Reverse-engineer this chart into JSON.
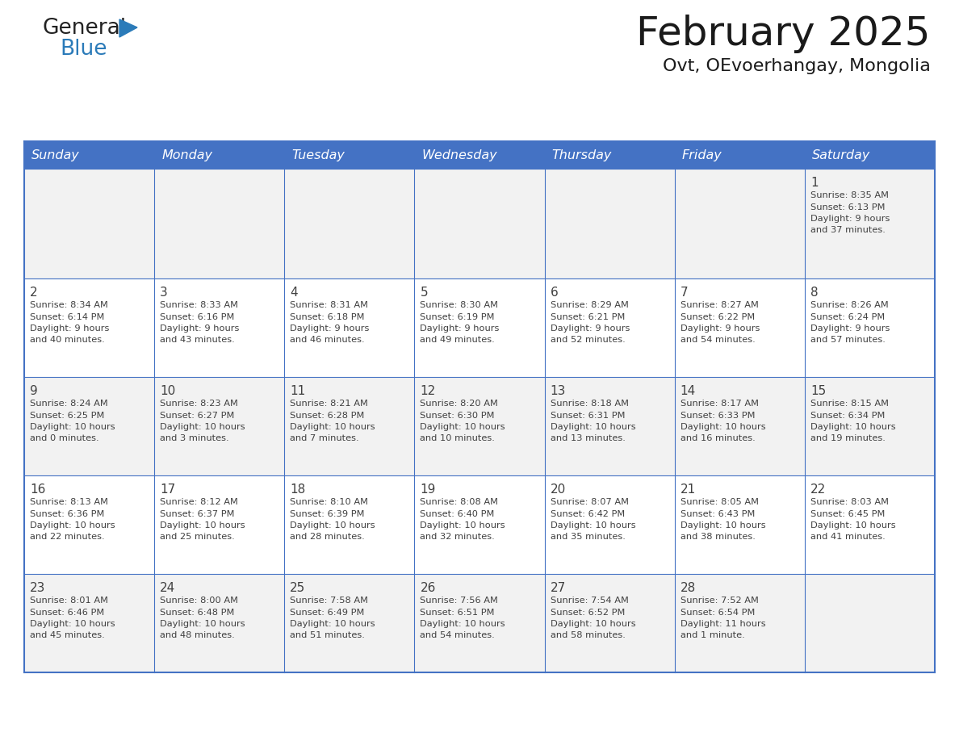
{
  "title": "February 2025",
  "subtitle": "Ovt, OEvoerhangay, Mongolia",
  "days_of_week": [
    "Sunday",
    "Monday",
    "Tuesday",
    "Wednesday",
    "Thursday",
    "Friday",
    "Saturday"
  ],
  "header_bg": "#4472C4",
  "header_text": "#FFFFFF",
  "cell_bg_odd": "#F2F2F2",
  "cell_bg_even": "#FFFFFF",
  "border_color": "#4472C4",
  "text_color": "#404040",
  "title_color": "#1a1a1a",
  "subtitle_color": "#1a1a1a",
  "calendar_data": [
    [
      null,
      null,
      null,
      null,
      null,
      null,
      {
        "day": "1",
        "sunrise": "8:35 AM",
        "sunset": "6:13 PM",
        "daylight_h": "9 hours",
        "daylight_m": "and 37 minutes."
      }
    ],
    [
      {
        "day": "2",
        "sunrise": "8:34 AM",
        "sunset": "6:14 PM",
        "daylight_h": "9 hours",
        "daylight_m": "and 40 minutes."
      },
      {
        "day": "3",
        "sunrise": "8:33 AM",
        "sunset": "6:16 PM",
        "daylight_h": "9 hours",
        "daylight_m": "and 43 minutes."
      },
      {
        "day": "4",
        "sunrise": "8:31 AM",
        "sunset": "6:18 PM",
        "daylight_h": "9 hours",
        "daylight_m": "and 46 minutes."
      },
      {
        "day": "5",
        "sunrise": "8:30 AM",
        "sunset": "6:19 PM",
        "daylight_h": "9 hours",
        "daylight_m": "and 49 minutes."
      },
      {
        "day": "6",
        "sunrise": "8:29 AM",
        "sunset": "6:21 PM",
        "daylight_h": "9 hours",
        "daylight_m": "and 52 minutes."
      },
      {
        "day": "7",
        "sunrise": "8:27 AM",
        "sunset": "6:22 PM",
        "daylight_h": "9 hours",
        "daylight_m": "and 54 minutes."
      },
      {
        "day": "8",
        "sunrise": "8:26 AM",
        "sunset": "6:24 PM",
        "daylight_h": "9 hours",
        "daylight_m": "and 57 minutes."
      }
    ],
    [
      {
        "day": "9",
        "sunrise": "8:24 AM",
        "sunset": "6:25 PM",
        "daylight_h": "10 hours",
        "daylight_m": "and 0 minutes."
      },
      {
        "day": "10",
        "sunrise": "8:23 AM",
        "sunset": "6:27 PM",
        "daylight_h": "10 hours",
        "daylight_m": "and 3 minutes."
      },
      {
        "day": "11",
        "sunrise": "8:21 AM",
        "sunset": "6:28 PM",
        "daylight_h": "10 hours",
        "daylight_m": "and 7 minutes."
      },
      {
        "day": "12",
        "sunrise": "8:20 AM",
        "sunset": "6:30 PM",
        "daylight_h": "10 hours",
        "daylight_m": "and 10 minutes."
      },
      {
        "day": "13",
        "sunrise": "8:18 AM",
        "sunset": "6:31 PM",
        "daylight_h": "10 hours",
        "daylight_m": "and 13 minutes."
      },
      {
        "day": "14",
        "sunrise": "8:17 AM",
        "sunset": "6:33 PM",
        "daylight_h": "10 hours",
        "daylight_m": "and 16 minutes."
      },
      {
        "day": "15",
        "sunrise": "8:15 AM",
        "sunset": "6:34 PM",
        "daylight_h": "10 hours",
        "daylight_m": "and 19 minutes."
      }
    ],
    [
      {
        "day": "16",
        "sunrise": "8:13 AM",
        "sunset": "6:36 PM",
        "daylight_h": "10 hours",
        "daylight_m": "and 22 minutes."
      },
      {
        "day": "17",
        "sunrise": "8:12 AM",
        "sunset": "6:37 PM",
        "daylight_h": "10 hours",
        "daylight_m": "and 25 minutes."
      },
      {
        "day": "18",
        "sunrise": "8:10 AM",
        "sunset": "6:39 PM",
        "daylight_h": "10 hours",
        "daylight_m": "and 28 minutes."
      },
      {
        "day": "19",
        "sunrise": "8:08 AM",
        "sunset": "6:40 PM",
        "daylight_h": "10 hours",
        "daylight_m": "and 32 minutes."
      },
      {
        "day": "20",
        "sunrise": "8:07 AM",
        "sunset": "6:42 PM",
        "daylight_h": "10 hours",
        "daylight_m": "and 35 minutes."
      },
      {
        "day": "21",
        "sunrise": "8:05 AM",
        "sunset": "6:43 PM",
        "daylight_h": "10 hours",
        "daylight_m": "and 38 minutes."
      },
      {
        "day": "22",
        "sunrise": "8:03 AM",
        "sunset": "6:45 PM",
        "daylight_h": "10 hours",
        "daylight_m": "and 41 minutes."
      }
    ],
    [
      {
        "day": "23",
        "sunrise": "8:01 AM",
        "sunset": "6:46 PM",
        "daylight_h": "10 hours",
        "daylight_m": "and 45 minutes."
      },
      {
        "day": "24",
        "sunrise": "8:00 AM",
        "sunset": "6:48 PM",
        "daylight_h": "10 hours",
        "daylight_m": "and 48 minutes."
      },
      {
        "day": "25",
        "sunrise": "7:58 AM",
        "sunset": "6:49 PM",
        "daylight_h": "10 hours",
        "daylight_m": "and 51 minutes."
      },
      {
        "day": "26",
        "sunrise": "7:56 AM",
        "sunset": "6:51 PM",
        "daylight_h": "10 hours",
        "daylight_m": "and 54 minutes."
      },
      {
        "day": "27",
        "sunrise": "7:54 AM",
        "sunset": "6:52 PM",
        "daylight_h": "10 hours",
        "daylight_m": "and 58 minutes."
      },
      {
        "day": "28",
        "sunrise": "7:52 AM",
        "sunset": "6:54 PM",
        "daylight_h": "11 hours",
        "daylight_m": "and 1 minute."
      },
      null
    ]
  ],
  "logo_text1": "General",
  "logo_text2": "Blue",
  "logo_color1": "#222222",
  "logo_color2": "#2B7BB9",
  "logo_triangle_color": "#2B7BB9"
}
